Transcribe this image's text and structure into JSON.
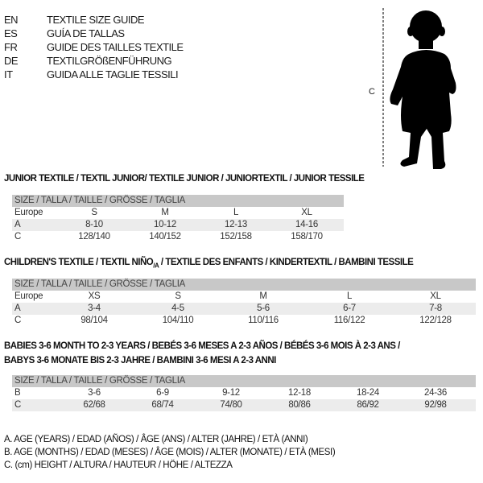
{
  "languages": [
    {
      "code": "EN",
      "text": "TEXTILE SIZE GUIDE"
    },
    {
      "code": "ES",
      "text": "GUÍA DE TALLAS"
    },
    {
      "code": "FR",
      "text": "GUIDE DES TAILLES TEXTILE"
    },
    {
      "code": "DE",
      "text": "TEXTILGRÖßENFÜHRUNG"
    },
    {
      "code": "IT",
      "text": "GUIDA ALLE TAGLIE TESSILI"
    }
  ],
  "figure": {
    "label": "C",
    "icon": "child-silhouette-icon"
  },
  "junior": {
    "title": "JUNIOR TEXTILE / TEXTIL JUNIOR/ TEXTILE JUNIOR / JUNIORTEXTIL / JUNIOR TESSILE",
    "header": "SIZE / TALLA / TAILLE / GRÖSSE / TAGLIA",
    "rows": [
      {
        "label": "Europe",
        "cells": [
          "S",
          "M",
          "L",
          "XL"
        ]
      },
      {
        "label": "A",
        "cells": [
          "8-10",
          "10-12",
          "12-13",
          "14-16"
        ]
      },
      {
        "label": "C",
        "cells": [
          "128/140",
          "140/152",
          "152/158",
          "158/170"
        ]
      }
    ]
  },
  "children": {
    "title": "CHILDREN'S TEXTILE / TEXTIL NIÑO",
    "title_sub": "/A",
    "title_rest": " / TEXTILE DES ENFANTS / KINDERTEXTIL / BAMBINI TESSILE",
    "header": "SIZE / TALLA / TAILLE / GRÖSSE / TAGLIA",
    "rows": [
      {
        "label": "Europe",
        "cells": [
          "XS",
          "S",
          "M",
          "L",
          "XL"
        ]
      },
      {
        "label": "A",
        "cells": [
          "3-4",
          "4-5",
          "5-6",
          "6-7",
          "7-8"
        ]
      },
      {
        "label": "C",
        "cells": [
          "98/104",
          "104/110",
          "110/116",
          "116/122",
          "122/128"
        ]
      }
    ]
  },
  "babies": {
    "title_line1": "BABIES 3-6 MONTH TO 2-3 YEARS / BEBÉS 3-6 MESES A 2-3 AÑOS / BÉBÉS 3-6 MOIS À 2-3 ANS /",
    "title_line2": "BABYS 3-6 MONATE BIS 2-3 JAHRE / BAMBINI 3-6 MESI A 2-3 ANNI",
    "header": "SIZE / TALLA / TAILLE / GRÖSSE / TAGLIA",
    "rows": [
      {
        "label": "B",
        "cells": [
          "3-6",
          "6-9",
          "9-12",
          "12-18",
          "18-24",
          "24-36"
        ]
      },
      {
        "label": "C",
        "cells": [
          "62/68",
          "68/74",
          "74/80",
          "80/86",
          "86/92",
          "92/98"
        ]
      }
    ]
  },
  "legend": [
    "A. AGE (YEARS) / EDAD (AÑOS) / ÂGE (ANS) / ALTER (JAHRE) / ETÀ (ANNI)",
    "B. AGE (MONTHS) / EDAD (MESES) / ÂGE (MOIS) / ALTER (MONATE) / ETÀ (MESI)",
    "C. (cm) HEIGHT / ALTURA / HAUTEUR / HÖHE / ALTEZZA"
  ]
}
